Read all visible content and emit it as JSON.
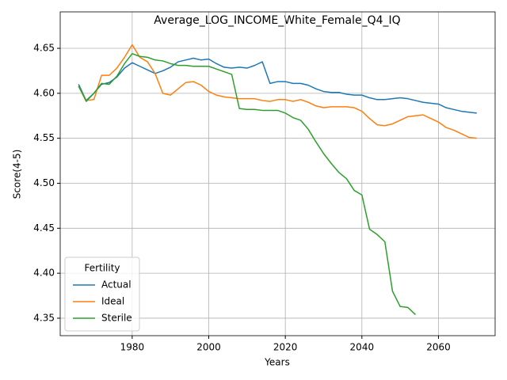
{
  "chart_data": {
    "type": "line",
    "title": "Average_LOG_INCOME_White_Female_Q4_IQ",
    "x_label": "Years",
    "y_label": "Score(4-5)",
    "x": [
      1966,
      1968,
      1970,
      1972,
      1974,
      1976,
      1978,
      1980,
      1982,
      1984,
      1986,
      1988,
      1990,
      1992,
      1994,
      1996,
      1998,
      2000,
      2002,
      2004,
      2006,
      2008,
      2010,
      2012,
      2014,
      2016,
      2018,
      2020,
      2022,
      2024,
      2026,
      2028,
      2030,
      2032,
      2034,
      2036,
      2038,
      2040,
      2042,
      2044,
      2046,
      2048,
      2050,
      2052,
      2054,
      2056,
      2058,
      2060,
      2062,
      2064,
      2066,
      2068,
      2070
    ],
    "series": [
      {
        "name": "Actual",
        "color": "#1f77b4",
        "values": [
          4.61,
          4.592,
          4.6,
          4.61,
          4.612,
          4.618,
          4.628,
          4.634,
          4.63,
          4.626,
          4.622,
          4.625,
          4.629,
          4.635,
          4.637,
          4.639,
          4.637,
          4.638,
          4.633,
          4.629,
          4.628,
          4.629,
          4.628,
          4.631,
          4.635,
          4.611,
          4.613,
          4.613,
          4.611,
          4.611,
          4.609,
          4.605,
          4.602,
          4.601,
          4.601,
          4.599,
          4.598,
          4.598,
          4.595,
          4.593,
          4.593,
          4.594,
          4.595,
          4.594,
          4.592,
          4.59,
          4.589,
          4.588,
          4.584,
          4.582,
          4.58,
          4.579,
          4.578
        ]
      },
      {
        "name": "Ideal",
        "color": "#ff7f0e",
        "values": [
          4.608,
          4.592,
          4.593,
          4.62,
          4.62,
          4.628,
          4.64,
          4.654,
          4.64,
          4.635,
          4.622,
          4.6,
          4.598,
          4.605,
          4.612,
          4.613,
          4.609,
          4.602,
          4.598,
          4.596,
          4.595,
          4.594,
          4.594,
          4.594,
          4.592,
          4.591,
          4.593,
          4.593,
          4.591,
          4.593,
          4.59,
          4.586,
          4.584,
          4.585,
          4.585,
          4.585,
          4.584,
          4.58,
          4.572,
          4.565,
          4.564,
          4.566,
          4.57,
          4.574,
          4.575,
          4.576,
          4.572,
          4.568,
          4.562,
          4.559,
          4.555,
          4.551,
          4.55
        ]
      },
      {
        "name": "Sterile",
        "color": "#2ca02c",
        "values": [
          4.608,
          4.591,
          4.6,
          4.611,
          4.61,
          4.619,
          4.633,
          4.644,
          4.641,
          4.64,
          4.637,
          4.636,
          4.633,
          4.631,
          4.631,
          4.63,
          4.63,
          4.63,
          4.627,
          4.624,
          4.621,
          4.583,
          4.582,
          4.582,
          4.581,
          4.581,
          4.581,
          4.578,
          4.573,
          4.57,
          4.56,
          4.546,
          4.533,
          4.522,
          4.512,
          4.505,
          4.492,
          4.487,
          4.449,
          4.443,
          4.435,
          4.38,
          4.363,
          4.362,
          4.354,
          null,
          null,
          null,
          null,
          null,
          null,
          null,
          null
        ]
      }
    ],
    "xlim": [
      1961.2,
      2074.8
    ],
    "ylim": [
      4.3306,
      4.6905
    ],
    "xticks": [
      1980,
      2000,
      2020,
      2040,
      2060
    ],
    "yticks": [
      4.35,
      {
        "value": 4.4,
        "label": "4.40"
      },
      4.45,
      {
        "value": 4.5,
        "label": "4.50"
      },
      4.55,
      {
        "value": 4.6,
        "label": "4.60"
      },
      4.65
    ],
    "grid": true,
    "legend_title": "Fertility",
    "legend_position": "lower left"
  }
}
